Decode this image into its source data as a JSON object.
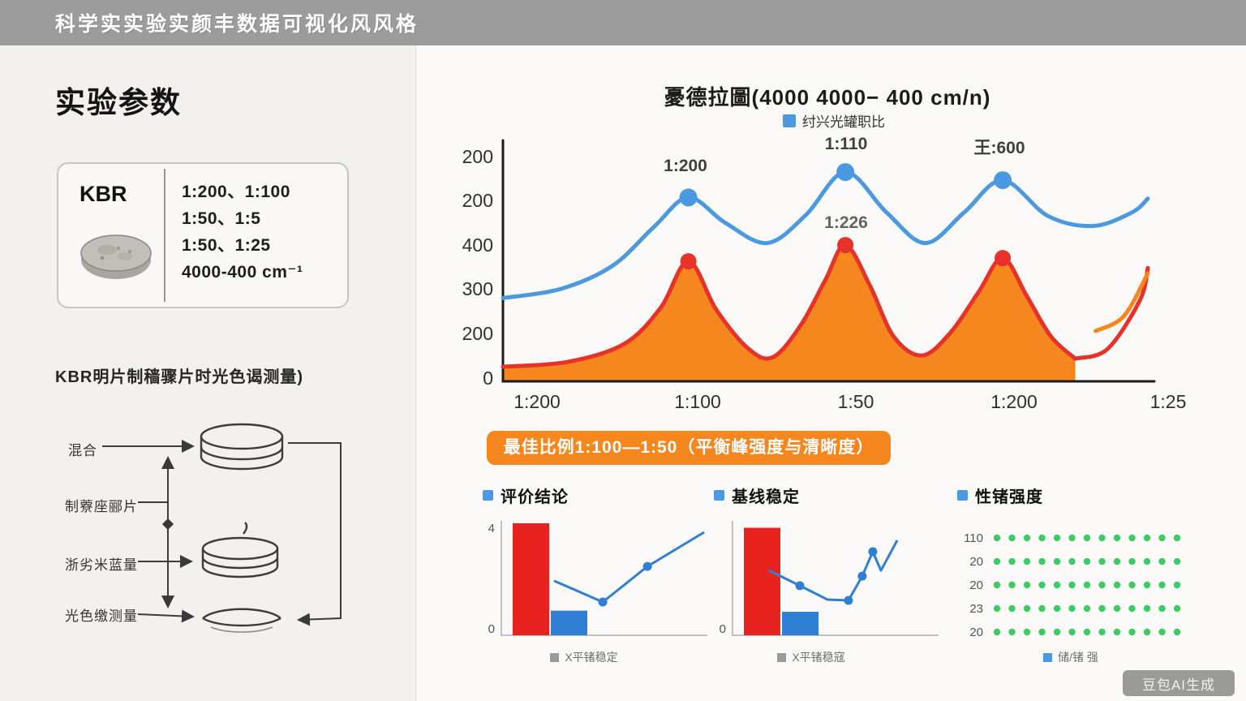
{
  "topbar": {
    "title": "科学实实验实颜丰数据可视化风风格"
  },
  "left": {
    "title": "实验参数",
    "param_card": {
      "label": "KBR",
      "lines": [
        "1:200、1:100",
        "1:50、1:5",
        "1:50、1:25",
        "4000-400 cm⁻¹"
      ]
    },
    "subtitle": "KBR明片制穑骤片时光色谒测量)",
    "flow_steps": [
      "混合",
      "制藔座郦片",
      "浙劣米蓝量",
      "光色缴测量"
    ]
  },
  "banner": {
    "text": "最佳比例1:100—1:50（平衡峰强度与清晰度）"
  },
  "watermark": {
    "text": "豆包AI生成"
  },
  "colors": {
    "accent_orange": "#f6861e",
    "line_blue": "#4b99e0",
    "line_red": "#e63228",
    "dot_green": "#3ecb63",
    "bar_red": "#e8231f",
    "bar_blue": "#2f7fd4"
  },
  "chart_data": [
    {
      "type": "line",
      "title": "憂德拉圖(4000 4000− 400 cm/n)",
      "legend": [
        "纣兴光罐职比"
      ],
      "y_ticks": [
        "200",
        "200",
        "400",
        "300",
        "200",
        "0"
      ],
      "x_ticks": [
        "1:200",
        "1:100",
        "1:50",
        "1:200",
        "1:25"
      ],
      "annotations": [
        {
          "text": "1:200"
        },
        {
          "text": "1:110"
        },
        {
          "text": "王:600"
        },
        {
          "text": "1:226"
        }
      ],
      "legend_position": "top",
      "grid": false,
      "series": [
        {
          "name": "red-spectrum",
          "color": "#e63228",
          "fill": "#f6861e",
          "width": 5,
          "dot_r": 10,
          "points": [
            [
              0,
              0.063
            ],
            [
              0.1,
              0.084
            ],
            [
              0.1875,
              0.161
            ],
            [
              0.244,
              0.316
            ],
            [
              0.2875,
              0.519
            ],
            [
              0.331,
              0.309
            ],
            [
              0.381,
              0.14
            ],
            [
              0.419,
              0.105
            ],
            [
              0.4625,
              0.246
            ],
            [
              0.5,
              0.439
            ],
            [
              0.531,
              0.589
            ],
            [
              0.569,
              0.414
            ],
            [
              0.606,
              0.193
            ],
            [
              0.65,
              0.112
            ],
            [
              0.694,
              0.211
            ],
            [
              0.7375,
              0.386
            ],
            [
              0.775,
              0.533
            ],
            [
              0.8125,
              0.368
            ],
            [
              0.85,
              0.193
            ],
            [
              0.8875,
              0.098
            ]
          ],
          "dots": [
            [
              0.2875,
              0.519
            ],
            [
              0.531,
              0.589
            ],
            [
              0.775,
              0.533
            ]
          ]
        },
        {
          "name": "red-tail",
          "color": "#e63228",
          "width": 5,
          "points": [
            [
              0.8875,
              0.098
            ],
            [
              0.9375,
              0.14
            ],
            [
              0.9875,
              0.35
            ],
            [
              1,
              0.49
            ]
          ]
        },
        {
          "name": "orange-accent",
          "color": "#f6861e",
          "width": 5,
          "points": [
            [
              0.919,
              0.218
            ],
            [
              0.9625,
              0.281
            ],
            [
              1,
              0.467
            ]
          ]
        },
        {
          "name": "blue-spectrum",
          "color": "#4b99e0",
          "width": 5,
          "dot_r": 11,
          "points": [
            [
              0,
              0.36
            ],
            [
              0.09,
              0.4
            ],
            [
              0.17,
              0.5
            ],
            [
              0.235,
              0.67
            ],
            [
              0.2875,
              0.795
            ],
            [
              0.345,
              0.685
            ],
            [
              0.41,
              0.598
            ],
            [
              0.47,
              0.72
            ],
            [
              0.531,
              0.905
            ],
            [
              0.595,
              0.73
            ],
            [
              0.655,
              0.598
            ],
            [
              0.715,
              0.73
            ],
            [
              0.775,
              0.87
            ],
            [
              0.845,
              0.715
            ],
            [
              0.915,
              0.672
            ],
            [
              0.975,
              0.73
            ],
            [
              1,
              0.79
            ]
          ],
          "dots": [
            [
              0.2875,
              0.795
            ],
            [
              0.531,
              0.905
            ],
            [
              0.775,
              0.87
            ]
          ]
        }
      ]
    },
    {
      "type": "bar-line",
      "title": "评价结论",
      "y_labels": [
        "4",
        "0"
      ],
      "x_label": "X平锗稳定",
      "bars": [
        {
          "color": "#e8231f",
          "h": 1.0
        },
        {
          "color": "#2f7fd4",
          "h": 0.22
        }
      ],
      "line": {
        "color": "#2f7fd4",
        "points": [
          [
            0.119,
            0.469
          ],
          [
            0.405,
            0.287
          ],
          [
            0.667,
            0.594
          ],
          [
            1.0,
            0.888
          ]
        ],
        "dots": [
          1,
          2
        ]
      }
    },
    {
      "type": "bar-line",
      "title": "基线稳定",
      "y_labels": [
        "0"
      ],
      "x_label": "X平锗稳寇",
      "bars": [
        {
          "color": "#e8231f",
          "h": 0.96
        },
        {
          "color": "#2f7fd4",
          "h": 0.21
        }
      ],
      "line": {
        "color": "#2f7fd4",
        "points": [
          [
            0.024,
            0.559
          ],
          [
            0.205,
            0.427
          ],
          [
            0.367,
            0.308
          ],
          [
            0.49,
            0.301
          ],
          [
            0.571,
            0.51
          ],
          [
            0.633,
            0.72
          ],
          [
            0.681,
            0.559
          ],
          [
            0.776,
            0.818
          ]
        ],
        "dots": [
          1,
          3,
          4,
          5
        ]
      }
    },
    {
      "type": "dot-grid",
      "title": "性锗强度",
      "x_label": "储/锗 强",
      "dot_color": "#3ecb63",
      "rows": [
        {
          "label": "110",
          "count": 13
        },
        {
          "label": "20",
          "count": 13
        },
        {
          "label": "20",
          "count": 13
        },
        {
          "label": "23",
          "count": 13
        },
        {
          "label": "20",
          "count": 13
        }
      ]
    }
  ]
}
